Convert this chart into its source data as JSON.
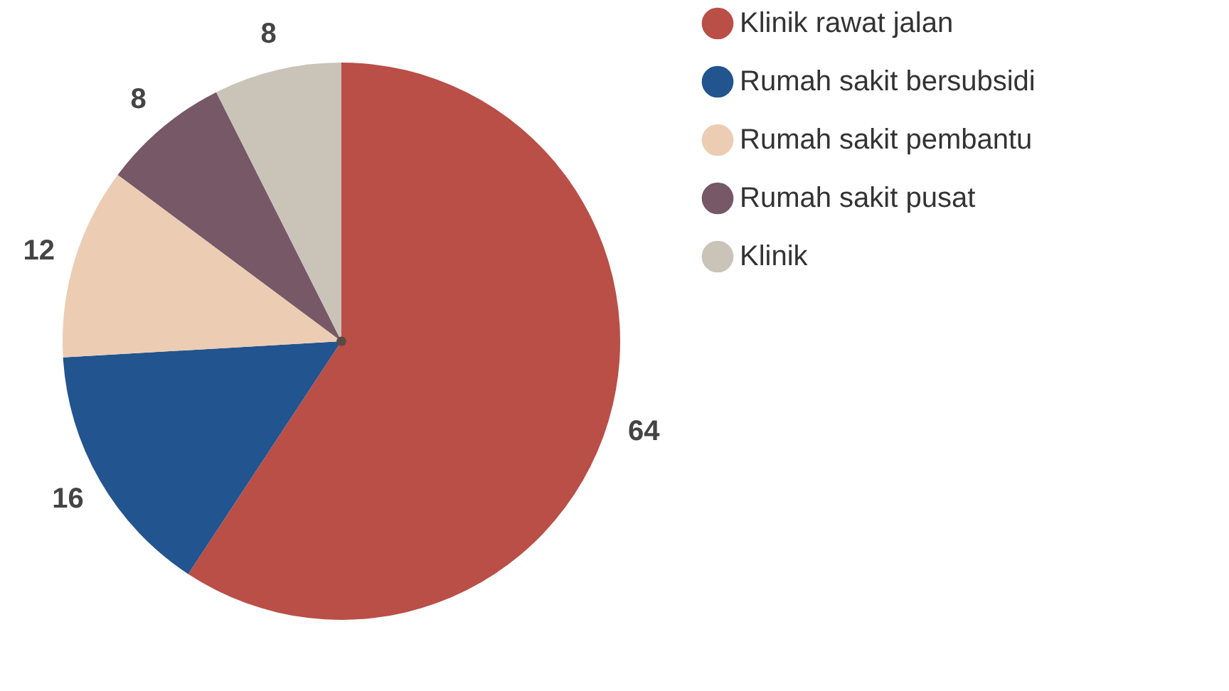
{
  "chart_data": {
    "type": "pie",
    "categories": [
      "Klinik rawat jalan",
      "Rumah sakit bersubsidi",
      "Rumah sakit pembantu",
      "Rumah sakit pusat",
      "Klinik"
    ],
    "values": [
      64,
      16,
      12,
      8,
      8
    ],
    "colors": [
      "#b94f47",
      "#22548f",
      "#eccdb3",
      "#765866",
      "#c9c3b8"
    ],
    "data_labels": true,
    "legend": "right"
  }
}
